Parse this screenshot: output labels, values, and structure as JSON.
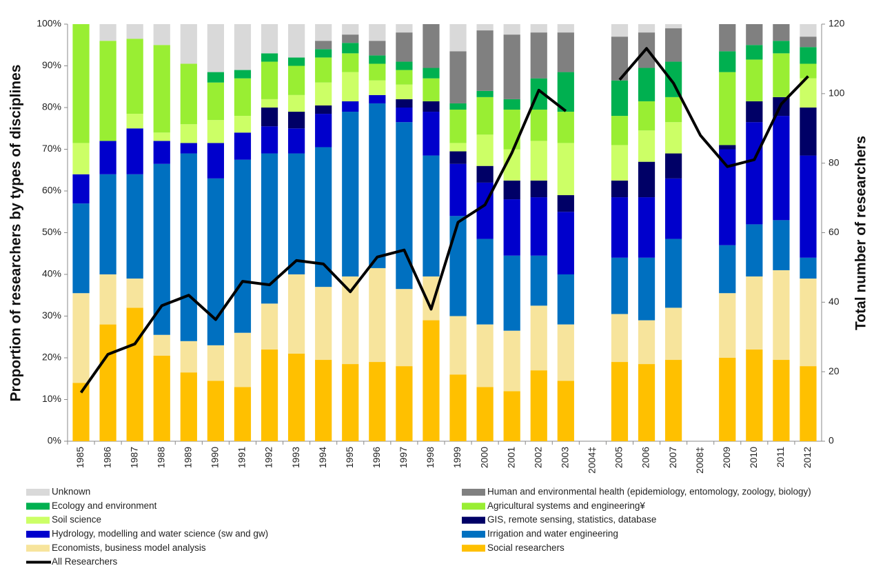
{
  "chart_data": {
    "type": "stacked-bar-line",
    "y_title": "Proportion of researchers by types of disciplines",
    "y2_title": "Total number of researchers",
    "categories": [
      "1985",
      "1986",
      "1987",
      "1988",
      "1989",
      "1990",
      "1991",
      "1992",
      "1993",
      "1994",
      "1995",
      "1996",
      "1997",
      "1998",
      "1999",
      "2000",
      "2001",
      "2002",
      "2003",
      "2004‡",
      "2005",
      "2006",
      "2007",
      "2008‡",
      "2009",
      "2010",
      "2011",
      "2012"
    ],
    "ylim": [
      0,
      100
    ],
    "yticks": [
      {
        "value": 0,
        "label": "0%"
      },
      {
        "value": 10,
        "label": "10%"
      },
      {
        "value": 20,
        "label": "20%"
      },
      {
        "value": 30,
        "label": "30%"
      },
      {
        "value": 40,
        "label": "40%"
      },
      {
        "value": 50,
        "label": "50%"
      },
      {
        "value": 60,
        "label": "60%"
      },
      {
        "value": 70,
        "label": "70%"
      },
      {
        "value": 80,
        "label": "80%"
      },
      {
        "value": 90,
        "label": "90%"
      },
      {
        "value": 100,
        "label": "100%"
      }
    ],
    "y2lim": [
      0,
      120
    ],
    "y2ticks": [
      0,
      20,
      40,
      60,
      80,
      100,
      120
    ],
    "series": [
      {
        "name": "Social researchers",
        "color": "#ffc000",
        "values": [
          14,
          28,
          32,
          20.5,
          16.5,
          14.5,
          13,
          22,
          21,
          19.5,
          18.5,
          19,
          18,
          29,
          16,
          13,
          12,
          17,
          14.5,
          null,
          19,
          18.5,
          19.5,
          null,
          20,
          22,
          19.5,
          18
        ]
      },
      {
        "name": "Economists, business model analysis",
        "color": "#f7e49c",
        "values": [
          21.5,
          12,
          7,
          5,
          7.5,
          8.5,
          13,
          11,
          19,
          17.5,
          21,
          22.5,
          18.5,
          10.5,
          14,
          15,
          14.5,
          15.5,
          13.5,
          null,
          11.5,
          10.5,
          12.5,
          null,
          15.5,
          17.5,
          21.5,
          21
        ]
      },
      {
        "name": "Irrigation and water engineering",
        "color": "#0070c0",
        "values": [
          21.5,
          24,
          25,
          41,
          45,
          40,
          41.5,
          36,
          29,
          33.5,
          39.5,
          39.5,
          40,
          29,
          24,
          20.5,
          18,
          12,
          12,
          null,
          13.5,
          15,
          16.5,
          null,
          11.5,
          12.5,
          12,
          5
        ]
      },
      {
        "name": "Hydrology, modelling and water science (sw and gw)",
        "color": "#0000cc",
        "values": [
          7,
          8,
          11,
          5.5,
          2.5,
          8.5,
          6.5,
          6.5,
          6,
          8,
          2.5,
          2,
          3.5,
          10.5,
          12.5,
          13.5,
          13.5,
          14,
          15,
          null,
          14.5,
          14.5,
          14.5,
          null,
          23,
          24.5,
          25,
          24.5
        ]
      },
      {
        "name": "GIS, remote sensing, statistics, database",
        "color": "#000066",
        "values": [
          0,
          0,
          0,
          0,
          0,
          0,
          0,
          4.5,
          4,
          2,
          0,
          0,
          2,
          2.5,
          3,
          4,
          4.5,
          4,
          4,
          null,
          4,
          8.5,
          6,
          null,
          1,
          5,
          4.5,
          11.5
        ]
      },
      {
        "name": "Soil science",
        "color": "#ccff66",
        "values": [
          7.5,
          0,
          3.5,
          2,
          4.5,
          5.5,
          4,
          2,
          4,
          5.5,
          7,
          3.5,
          3.5,
          0,
          2,
          7.5,
          7.5,
          9.5,
          12.5,
          null,
          8.5,
          7.5,
          7.5,
          null,
          0,
          0,
          0,
          7
        ]
      },
      {
        "name": "Agricultural systems and engineering¥",
        "color": "#99ee33",
        "values": [
          28.5,
          24,
          18,
          21,
          14.5,
          9,
          9,
          9,
          7,
          6,
          4.5,
          4,
          3.5,
          5.5,
          8,
          9,
          9.5,
          7.5,
          7.5,
          null,
          7,
          7,
          6,
          null,
          17.5,
          10,
          10.5,
          3.5
        ]
      },
      {
        "name": "Ecology and environment",
        "color": "#00b050",
        "values": [
          0,
          0,
          0,
          0,
          0,
          2.5,
          2,
          2,
          2,
          2,
          2.5,
          2,
          2,
          2.5,
          1.5,
          1.5,
          2.5,
          7.5,
          9.5,
          null,
          8.5,
          8,
          8.5,
          null,
          5,
          3.5,
          3,
          4
        ]
      },
      {
        "name": "Human and environmental health (epidemiology, entomology, zoology, biology)",
        "color": "#808080",
        "values": [
          0,
          0,
          0,
          0,
          0,
          0,
          0,
          0,
          0,
          2,
          2,
          3.5,
          7,
          10.5,
          12.5,
          14.5,
          15.5,
          11,
          9.5,
          null,
          10.5,
          8.5,
          8,
          null,
          6.5,
          5,
          4,
          2.5
        ]
      },
      {
        "name": "Unknown",
        "color": "#d9d9d9",
        "values": [
          0,
          4,
          3.5,
          5,
          9.5,
          11.5,
          11,
          7,
          8,
          4,
          2.5,
          4,
          2,
          0,
          6.5,
          1.5,
          2.5,
          2,
          2,
          null,
          3,
          2,
          1,
          null,
          0,
          0,
          0,
          3
        ]
      },
      {
        "name": "All Researchers",
        "color": "#000000",
        "axis": "y2",
        "values": [
          14,
          25,
          28,
          39,
          42,
          35,
          46,
          45,
          52,
          51,
          43,
          53,
          55,
          38,
          63,
          68,
          83,
          101,
          95,
          null,
          104,
          113,
          103,
          88,
          79,
          81,
          97,
          105
        ]
      }
    ]
  }
}
